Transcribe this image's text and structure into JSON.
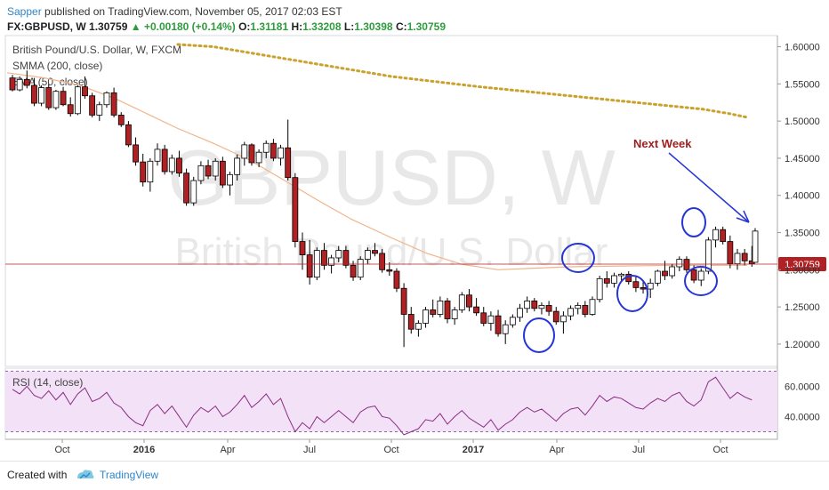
{
  "header": {
    "author": "Sapper",
    "published_text": "published on TradingView.com, November 05, 2017 02:03 EST",
    "symbol": "FX:GBPUSD, W",
    "last": "1.30759",
    "change": "▲ +0.00180 (+0.14%)",
    "o_label": "O:",
    "o_value": "1.31181",
    "h_label": "H:",
    "h_value": "1.33208",
    "l_label": "L:",
    "l_value": "1.30398",
    "c_label": "C:",
    "c_value": "1.30759"
  },
  "legend": {
    "title": "British Pound/U.S. Dollar, W, FXCM",
    "smma": "SMMA (200, close)",
    "ema": "EMA (50, close)"
  },
  "watermark": {
    "big": "GBPUSD, W",
    "sub": "British Pound/U.S. Dollar"
  },
  "annotation": {
    "text": "Next Week"
  },
  "price_tag": "1.30759",
  "rsi_label": "RSI (14, close)",
  "footer": {
    "created": "Created with",
    "brand": "TradingView"
  },
  "colors": {
    "up_fill": "#ffffff",
    "down_fill": "#b02124",
    "candle_border": "#000000",
    "smma": "#c9a22e",
    "ema": "#f0b58a",
    "rsi_line": "#8a2c82",
    "rsi_band": "#f2e1f7",
    "annotation": "#2535d6",
    "next_week_text": "#a02020",
    "price_tag_bg": "#b02124"
  },
  "chart_data": {
    "type": "candlestick",
    "price_axis": {
      "ticks": [
        "1.60000",
        "1.55000",
        "1.50000",
        "1.45000",
        "1.40000",
        "1.35000",
        "1.30000",
        "1.25000",
        "1.20000"
      ],
      "range": [
        1.17,
        1.615
      ]
    },
    "time_axis": {
      "labels": [
        "Oct",
        "2016",
        "Apr",
        "Jul",
        "Oct",
        "2017",
        "Apr",
        "Jul",
        "Oct"
      ]
    },
    "rsi_axis": {
      "ticks": [
        "60.0000",
        "40.0000"
      ],
      "range": [
        25,
        72
      ]
    },
    "last_close": 1.30759,
    "series": [
      {
        "name": "SMMA (200, close)",
        "points": [
          [
            1.603,
            14
          ],
          [
            1.6,
            30
          ],
          [
            1.59,
            60
          ],
          [
            1.58,
            90
          ],
          [
            1.57,
            120
          ],
          [
            1.56,
            150
          ],
          [
            1.553,
            180
          ],
          [
            1.546,
            210
          ],
          [
            1.54,
            240
          ],
          [
            1.534,
            270
          ],
          [
            1.528,
            300
          ],
          [
            1.522,
            330
          ],
          [
            1.516,
            360
          ],
          [
            1.51,
            390
          ],
          [
            1.505,
            410
          ]
        ]
      },
      {
        "name": "EMA (50, close)",
        "points": [
          [
            1.565,
            0
          ],
          [
            1.558,
            40
          ],
          [
            1.548,
            80
          ],
          [
            1.53,
            120
          ],
          [
            1.51,
            150
          ],
          [
            1.49,
            180
          ],
          [
            1.47,
            210
          ],
          [
            1.448,
            240
          ],
          [
            1.42,
            270
          ],
          [
            1.395,
            300
          ],
          [
            1.368,
            330
          ],
          [
            1.343,
            360
          ],
          [
            1.322,
            390
          ],
          [
            1.307,
            410
          ],
          [
            1.3,
            440
          ],
          [
            1.302,
            470
          ],
          [
            1.304,
            500
          ],
          [
            1.305,
            530
          ],
          [
            1.306,
            560
          ],
          [
            1.306,
            590
          ]
        ]
      }
    ],
    "candles": [
      [
        1.558,
        1.562,
        1.54,
        1.542
      ],
      [
        1.542,
        1.56,
        1.54,
        1.556
      ],
      [
        1.556,
        1.568,
        1.544,
        1.548
      ],
      [
        1.548,
        1.558,
        1.52,
        1.524
      ],
      [
        1.524,
        1.548,
        1.52,
        1.545
      ],
      [
        1.545,
        1.55,
        1.515,
        1.518
      ],
      [
        1.518,
        1.542,
        1.515,
        1.54
      ],
      [
        1.54,
        1.546,
        1.52,
        1.522
      ],
      [
        1.522,
        1.532,
        1.506,
        1.51
      ],
      [
        1.51,
        1.548,
        1.508,
        1.546
      ],
      [
        1.546,
        1.56,
        1.53,
        1.534
      ],
      [
        1.534,
        1.538,
        1.505,
        1.508
      ],
      [
        1.508,
        1.526,
        1.5,
        1.522
      ],
      [
        1.522,
        1.54,
        1.518,
        1.538
      ],
      [
        1.538,
        1.545,
        1.505,
        1.508
      ],
      [
        1.508,
        1.512,
        1.492,
        1.495
      ],
      [
        1.495,
        1.5,
        1.465,
        1.468
      ],
      [
        1.468,
        1.478,
        1.44,
        1.445
      ],
      [
        1.445,
        1.456,
        1.412,
        1.418
      ],
      [
        1.418,
        1.45,
        1.405,
        1.446
      ],
      [
        1.446,
        1.47,
        1.44,
        1.462
      ],
      [
        1.462,
        1.468,
        1.428,
        1.432
      ],
      [
        1.432,
        1.455,
        1.428,
        1.45
      ],
      [
        1.45,
        1.46,
        1.425,
        1.43
      ],
      [
        1.43,
        1.436,
        1.386,
        1.39
      ],
      [
        1.39,
        1.425,
        1.386,
        1.42
      ],
      [
        1.42,
        1.446,
        1.415,
        1.44
      ],
      [
        1.44,
        1.448,
        1.422,
        1.426
      ],
      [
        1.426,
        1.45,
        1.42,
        1.446
      ],
      [
        1.446,
        1.452,
        1.41,
        1.414
      ],
      [
        1.414,
        1.432,
        1.4,
        1.428
      ],
      [
        1.428,
        1.455,
        1.42,
        1.45
      ],
      [
        1.45,
        1.472,
        1.44,
        1.468
      ],
      [
        1.468,
        1.47,
        1.44,
        1.444
      ],
      [
        1.444,
        1.462,
        1.438,
        1.458
      ],
      [
        1.458,
        1.474,
        1.45,
        1.47
      ],
      [
        1.47,
        1.476,
        1.446,
        1.45
      ],
      [
        1.45,
        1.468,
        1.44,
        1.464
      ],
      [
        1.464,
        1.502,
        1.42,
        1.424
      ],
      [
        1.424,
        1.43,
        1.33,
        1.338
      ],
      [
        1.338,
        1.35,
        1.3,
        1.32
      ],
      [
        1.32,
        1.34,
        1.28,
        1.29
      ],
      [
        1.29,
        1.33,
        1.286,
        1.326
      ],
      [
        1.326,
        1.336,
        1.3,
        1.306
      ],
      [
        1.306,
        1.32,
        1.295,
        1.316
      ],
      [
        1.316,
        1.332,
        1.31,
        1.326
      ],
      [
        1.326,
        1.332,
        1.302,
        1.306
      ],
      [
        1.306,
        1.312,
        1.285,
        1.29
      ],
      [
        1.29,
        1.318,
        1.286,
        1.314
      ],
      [
        1.314,
        1.33,
        1.308,
        1.326
      ],
      [
        1.326,
        1.336,
        1.318,
        1.322
      ],
      [
        1.322,
        1.328,
        1.296,
        1.3
      ],
      [
        1.3,
        1.31,
        1.292,
        1.298
      ],
      [
        1.298,
        1.302,
        1.27,
        1.275
      ],
      [
        1.275,
        1.282,
        1.196,
        1.24
      ],
      [
        1.24,
        1.25,
        1.214,
        1.22
      ],
      [
        1.22,
        1.232,
        1.21,
        1.228
      ],
      [
        1.228,
        1.25,
        1.222,
        1.246
      ],
      [
        1.246,
        1.26,
        1.236,
        1.24
      ],
      [
        1.24,
        1.264,
        1.236,
        1.258
      ],
      [
        1.258,
        1.262,
        1.228,
        1.234
      ],
      [
        1.234,
        1.25,
        1.226,
        1.246
      ],
      [
        1.246,
        1.27,
        1.242,
        1.266
      ],
      [
        1.266,
        1.274,
        1.244,
        1.25
      ],
      [
        1.25,
        1.262,
        1.238,
        1.242
      ],
      [
        1.242,
        1.25,
        1.224,
        1.228
      ],
      [
        1.228,
        1.244,
        1.218,
        1.238
      ],
      [
        1.238,
        1.246,
        1.21,
        1.214
      ],
      [
        1.214,
        1.232,
        1.2,
        1.226
      ],
      [
        1.226,
        1.24,
        1.222,
        1.236
      ],
      [
        1.236,
        1.254,
        1.23,
        1.248
      ],
      [
        1.248,
        1.264,
        1.242,
        1.258
      ],
      [
        1.258,
        1.262,
        1.244,
        1.248
      ],
      [
        1.248,
        1.256,
        1.24,
        1.252
      ],
      [
        1.252,
        1.258,
        1.238,
        1.244
      ],
      [
        1.244,
        1.25,
        1.226,
        1.23
      ],
      [
        1.23,
        1.244,
        1.214,
        1.238
      ],
      [
        1.238,
        1.252,
        1.232,
        1.248
      ],
      [
        1.248,
        1.256,
        1.24,
        1.252
      ],
      [
        1.252,
        1.258,
        1.236,
        1.24
      ],
      [
        1.24,
        1.264,
        1.238,
        1.26
      ],
      [
        1.26,
        1.292,
        1.256,
        1.288
      ],
      [
        1.288,
        1.298,
        1.276,
        1.282
      ],
      [
        1.282,
        1.296,
        1.276,
        1.292
      ],
      [
        1.292,
        1.296,
        1.284,
        1.294
      ],
      [
        1.294,
        1.298,
        1.28,
        1.284
      ],
      [
        1.284,
        1.292,
        1.27,
        1.276
      ],
      [
        1.276,
        1.286,
        1.268,
        1.274
      ],
      [
        1.274,
        1.288,
        1.262,
        1.282
      ],
      [
        1.282,
        1.3,
        1.278,
        1.298
      ],
      [
        1.298,
        1.312,
        1.286,
        1.292
      ],
      [
        1.292,
        1.308,
        1.288,
        1.304
      ],
      [
        1.304,
        1.318,
        1.298,
        1.314
      ],
      [
        1.314,
        1.318,
        1.296,
        1.3
      ],
      [
        1.3,
        1.306,
        1.282,
        1.286
      ],
      [
        1.286,
        1.302,
        1.278,
        1.298
      ],
      [
        1.298,
        1.344,
        1.294,
        1.34
      ],
      [
        1.34,
        1.358,
        1.33,
        1.354
      ],
      [
        1.354,
        1.358,
        1.334,
        1.338
      ],
      [
        1.338,
        1.346,
        1.302,
        1.308
      ],
      [
        1.308,
        1.328,
        1.3,
        1.322
      ],
      [
        1.322,
        1.328,
        1.306,
        1.312
      ],
      [
        1.312,
        1.332,
        1.304,
        1.308
      ]
    ],
    "next_week_candle": [
      1.31,
      1.356,
      1.31,
      1.352
    ],
    "rsi": [
      58,
      55,
      60,
      54,
      52,
      57,
      51,
      56,
      48,
      55,
      59,
      50,
      52,
      56,
      49,
      46,
      40,
      36,
      34,
      44,
      48,
      42,
      47,
      40,
      33,
      41,
      46,
      43,
      47,
      40,
      43,
      48,
      54,
      46,
      50,
      55,
      48,
      52,
      40,
      30,
      36,
      32,
      40,
      36,
      40,
      44,
      40,
      36,
      43,
      46,
      47,
      40,
      39,
      34,
      28,
      30,
      32,
      38,
      37,
      42,
      35,
      40,
      44,
      39,
      36,
      33,
      38,
      31,
      35,
      38,
      43,
      46,
      43,
      45,
      41,
      37,
      42,
      45,
      46,
      41,
      47,
      54,
      50,
      53,
      52,
      49,
      46,
      45,
      49,
      52,
      50,
      54,
      56,
      50,
      47,
      51,
      63,
      66,
      59,
      52,
      56,
      53,
      51
    ]
  }
}
